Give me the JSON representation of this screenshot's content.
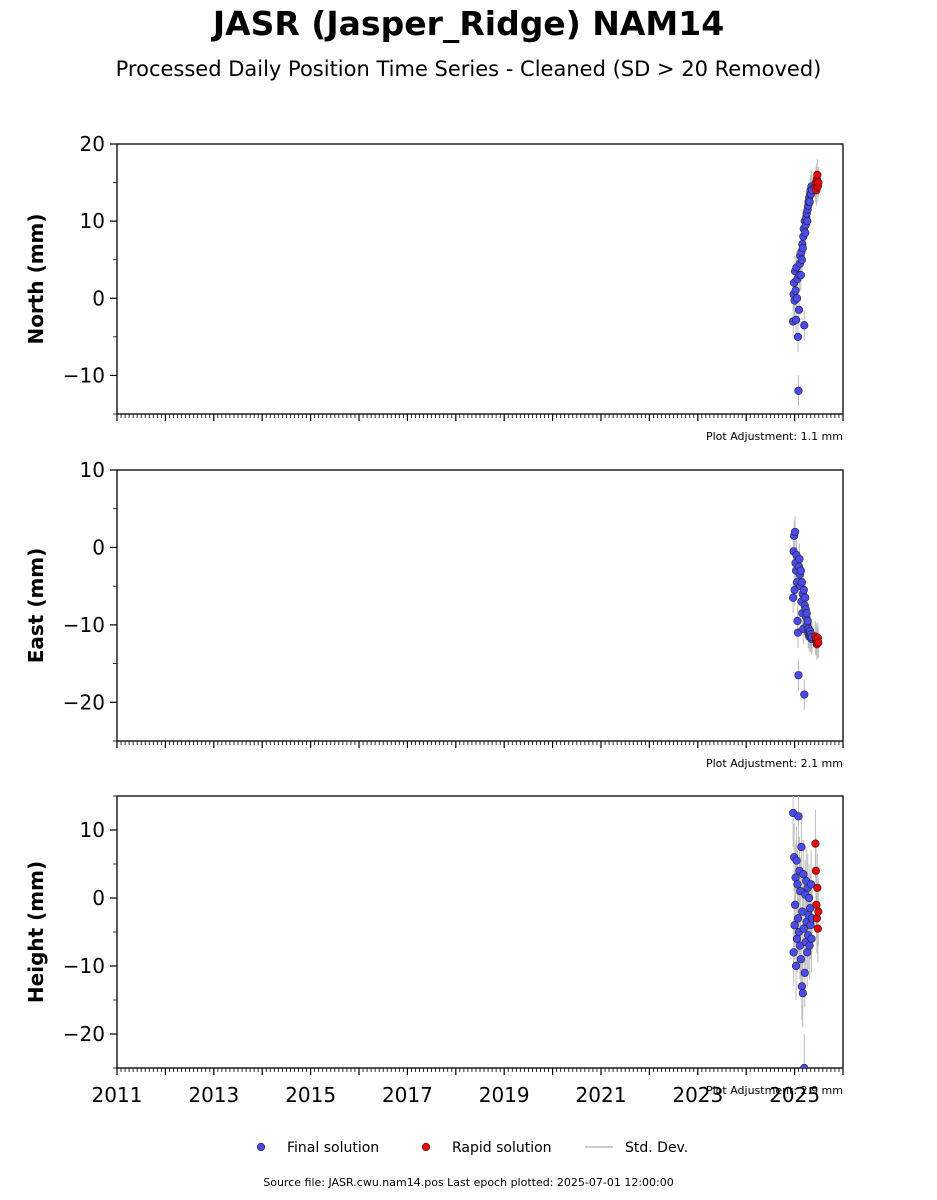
{
  "title": "JASR (Jasper_Ridge) NAM14",
  "subtitle": "Processed Daily Position Time Series - Cleaned (SD > 20 Removed)",
  "footer": "Source file: JASR.cwu.nam14.pos  Last epoch plotted: 2025-07-01 12:00:00",
  "colors": {
    "final": "#4a4af0",
    "rapid": "#ee0000",
    "stddev": "#bdbdbd"
  },
  "legend": [
    {
      "label": "Final solution",
      "marker": "dot",
      "series": "final"
    },
    {
      "label": "Rapid solution",
      "marker": "dot",
      "series": "rapid"
    },
    {
      "label": "Std. Dev.",
      "marker": "line",
      "series": "stddev"
    }
  ],
  "chart_data": [
    {
      "type": "scatter",
      "ylabel": "North (mm)",
      "xlim": [
        2011,
        2026
      ],
      "ylim": [
        -15,
        20
      ],
      "yticks": [
        -10,
        0,
        10,
        20
      ],
      "adjustment": "Plot Adjustment: 1.1 mm",
      "series": [
        {
          "name": "Final solution",
          "key": "final",
          "points": [
            [
              2024.97,
              -3.0
            ],
            [
              2024.98,
              0.5
            ],
            [
              2024.99,
              2.0
            ],
            [
              2025.0,
              -0.3
            ],
            [
              2025.01,
              3.5
            ],
            [
              2025.02,
              1.0
            ],
            [
              2025.03,
              -2.8
            ],
            [
              2025.04,
              4.0
            ],
            [
              2025.05,
              0.0
            ],
            [
              2025.06,
              2.5
            ],
            [
              2025.07,
              -5.0
            ],
            [
              2025.08,
              -12.0
            ],
            [
              2025.09,
              -1.5
            ],
            [
              2025.1,
              3.0
            ],
            [
              2025.11,
              4.5
            ],
            [
              2025.12,
              5.5
            ],
            [
              2025.13,
              3.0
            ],
            [
              2025.14,
              6.0
            ],
            [
              2025.15,
              5.0
            ],
            [
              2025.16,
              7.0
            ],
            [
              2025.17,
              6.5
            ],
            [
              2025.18,
              8.0
            ],
            [
              2025.19,
              9.0
            ],
            [
              2025.2,
              -3.5
            ],
            [
              2025.21,
              10.0
            ],
            [
              2025.22,
              8.5
            ],
            [
              2025.23,
              9.5
            ],
            [
              2025.24,
              10.5
            ],
            [
              2025.25,
              11.0
            ],
            [
              2025.26,
              10.0
            ],
            [
              2025.27,
              11.5
            ],
            [
              2025.28,
              12.0
            ],
            [
              2025.29,
              12.5
            ],
            [
              2025.3,
              13.0
            ],
            [
              2025.31,
              12.5
            ],
            [
              2025.32,
              13.5
            ],
            [
              2025.33,
              14.0
            ],
            [
              2025.34,
              13.5
            ],
            [
              2025.35,
              14.5
            ],
            [
              2025.36,
              14.0
            ]
          ]
        },
        {
          "name": "Rapid solution",
          "key": "rapid",
          "points": [
            [
              2025.43,
              14.5
            ],
            [
              2025.44,
              15.0
            ],
            [
              2025.45,
              14.0
            ],
            [
              2025.46,
              15.5
            ],
            [
              2025.47,
              16.0
            ],
            [
              2025.48,
              14.5
            ],
            [
              2025.49,
              15.0
            ]
          ]
        }
      ]
    },
    {
      "type": "scatter",
      "ylabel": "East (mm)",
      "xlim": [
        2011,
        2026
      ],
      "ylim": [
        -25,
        10
      ],
      "yticks": [
        -20,
        -10,
        0,
        10
      ],
      "adjustment": "Plot Adjustment: 2.1 mm",
      "series": [
        {
          "name": "Final solution",
          "key": "final",
          "points": [
            [
              2024.97,
              -6.5
            ],
            [
              2024.98,
              -0.5
            ],
            [
              2024.99,
              1.5
            ],
            [
              2025.0,
              -5.5
            ],
            [
              2025.01,
              2.0
            ],
            [
              2025.02,
              -2.0
            ],
            [
              2025.03,
              -3.0
            ],
            [
              2025.04,
              -1.0
            ],
            [
              2025.05,
              -4.5
            ],
            [
              2025.06,
              -9.5
            ],
            [
              2025.07,
              -11.0
            ],
            [
              2025.08,
              -16.5
            ],
            [
              2025.09,
              -2.5
            ],
            [
              2025.1,
              -1.5
            ],
            [
              2025.11,
              -3.5
            ],
            [
              2025.12,
              -5.0
            ],
            [
              2025.13,
              -3.0
            ],
            [
              2025.14,
              -7.0
            ],
            [
              2025.15,
              -4.5
            ],
            [
              2025.16,
              -8.5
            ],
            [
              2025.17,
              -6.0
            ],
            [
              2025.18,
              -10.5
            ],
            [
              2025.19,
              -5.5
            ],
            [
              2025.2,
              -19.0
            ],
            [
              2025.21,
              -7.5
            ],
            [
              2025.22,
              -6.5
            ],
            [
              2025.23,
              -8.0
            ],
            [
              2025.24,
              -9.0
            ],
            [
              2025.25,
              -8.5
            ],
            [
              2025.26,
              -10.0
            ],
            [
              2025.27,
              -9.5
            ],
            [
              2025.28,
              -11.0
            ],
            [
              2025.29,
              -10.5
            ],
            [
              2025.3,
              -11.5
            ],
            [
              2025.31,
              -11.0
            ],
            [
              2025.32,
              -10.8
            ],
            [
              2025.33,
              -11.5
            ],
            [
              2025.34,
              -11.2
            ],
            [
              2025.35,
              -11.8
            ],
            [
              2025.36,
              -11.6
            ]
          ]
        },
        {
          "name": "Rapid solution",
          "key": "rapid",
          "points": [
            [
              2025.43,
              -11.5
            ],
            [
              2025.44,
              -12.0
            ],
            [
              2025.45,
              -11.8
            ],
            [
              2025.46,
              -12.5
            ],
            [
              2025.47,
              -12.2
            ],
            [
              2025.48,
              -11.7
            ],
            [
              2025.49,
              -12.3
            ]
          ]
        }
      ]
    },
    {
      "type": "scatter",
      "ylabel": "Height (mm)",
      "xlim": [
        2011,
        2026
      ],
      "ylim": [
        -25,
        15
      ],
      "yticks": [
        -20,
        -10,
        0,
        10
      ],
      "xticks": [
        2011,
        2013,
        2015,
        2017,
        2019,
        2021,
        2023,
        2025
      ],
      "adjustment": "Plot Adjustment: 2.9 mm",
      "series": [
        {
          "name": "Final solution",
          "key": "final",
          "points": [
            [
              2024.97,
              12.5
            ],
            [
              2024.98,
              -8.0
            ],
            [
              2024.99,
              6.0
            ],
            [
              2025.0,
              -4.0
            ],
            [
              2025.01,
              -1.0
            ],
            [
              2025.02,
              3.0
            ],
            [
              2025.03,
              -10.0
            ],
            [
              2025.04,
              5.5
            ],
            [
              2025.05,
              -6.0
            ],
            [
              2025.06,
              2.0
            ],
            [
              2025.07,
              -3.0
            ],
            [
              2025.08,
              12.0
            ],
            [
              2025.09,
              -5.0
            ],
            [
              2025.1,
              4.0
            ],
            [
              2025.11,
              -7.0
            ],
            [
              2025.12,
              1.0
            ],
            [
              2025.13,
              -9.0
            ],
            [
              2025.14,
              7.5
            ],
            [
              2025.15,
              -13.0
            ],
            [
              2025.16,
              -2.0
            ],
            [
              2025.17,
              -14.0
            ],
            [
              2025.18,
              3.5
            ],
            [
              2025.19,
              -4.5
            ],
            [
              2025.2,
              -25.0
            ],
            [
              2025.21,
              -11.0
            ],
            [
              2025.22,
              0.5
            ],
            [
              2025.23,
              -6.5
            ],
            [
              2025.24,
              2.5
            ],
            [
              2025.25,
              -3.5
            ],
            [
              2025.26,
              -8.0
            ],
            [
              2025.27,
              1.5
            ],
            [
              2025.28,
              -5.5
            ],
            [
              2025.29,
              -2.5
            ],
            [
              2025.3,
              0.0
            ],
            [
              2025.31,
              -7.0
            ],
            [
              2025.32,
              -1.5
            ],
            [
              2025.33,
              -4.0
            ],
            [
              2025.34,
              2.0
            ],
            [
              2025.35,
              -6.0
            ],
            [
              2025.36,
              -3.0
            ]
          ]
        },
        {
          "name": "Rapid solution",
          "key": "rapid",
          "points": [
            [
              2025.43,
              8.0
            ],
            [
              2025.44,
              4.0
            ],
            [
              2025.45,
              -1.0
            ],
            [
              2025.46,
              -3.0
            ],
            [
              2025.47,
              1.5
            ],
            [
              2025.48,
              -4.5
            ],
            [
              2025.49,
              -2.0
            ]
          ]
        }
      ]
    }
  ]
}
